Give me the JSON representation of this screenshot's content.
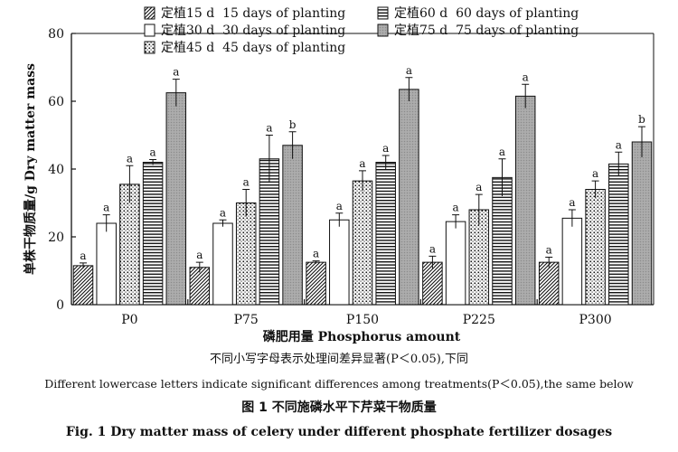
{
  "chart_data": {
    "type": "bar",
    "title": "",
    "xlabel": "磷肥用量 Phosphorus amount",
    "ylabel": "单株干物质量/g Dry matter mass",
    "ylim": [
      0,
      80
    ],
    "yticks": [
      0,
      20,
      40,
      60,
      80
    ],
    "categories": [
      "P0",
      "P75",
      "P150",
      "P225",
      "P300"
    ],
    "legend_position": "top-left",
    "series": [
      {
        "name": "定植15 d  15 days of planting",
        "pattern": "diagonal",
        "values": [
          11.5,
          11.0,
          12.5,
          12.5,
          12.5
        ],
        "errors": [
          0.8,
          1.5,
          0.4,
          1.8,
          1.5
        ],
        "letters": [
          "a",
          "a",
          "a",
          "a",
          "a"
        ]
      },
      {
        "name": "定植30 d  30 days of planting",
        "pattern": "white",
        "values": [
          24.0,
          24.0,
          25.0,
          24.5,
          25.5
        ],
        "errors": [
          2.5,
          1.0,
          2.0,
          2.0,
          2.5
        ],
        "letters": [
          "a",
          "a",
          "a",
          "a",
          "a"
        ]
      },
      {
        "name": "定植45 d  45 days of planting",
        "pattern": "dots",
        "values": [
          35.5,
          30.0,
          36.5,
          28.0,
          34.0
        ],
        "errors": [
          5.5,
          4.0,
          3.0,
          4.5,
          2.5
        ],
        "letters": [
          "a",
          "a",
          "a",
          "a",
          "a"
        ]
      },
      {
        "name": "定植60 d  60 days of planting",
        "pattern": "horizontal",
        "values": [
          42.0,
          43.0,
          42.0,
          37.5,
          41.5
        ],
        "errors": [
          0.8,
          7.0,
          2.0,
          5.5,
          3.5
        ],
        "letters": [
          "a",
          "a",
          "a",
          "a",
          "a"
        ]
      },
      {
        "name": "定植75 d  75 days of planting",
        "pattern": "gray",
        "values": [
          62.5,
          47.0,
          63.5,
          61.5,
          48.0
        ],
        "errors": [
          4.0,
          4.0,
          3.5,
          3.5,
          4.5
        ],
        "letters": [
          "a",
          "b",
          "a",
          "a",
          "b"
        ]
      }
    ]
  },
  "captions": {
    "note_cn": "不同小写字母表示处理间差异显著(P＜0.05),下同",
    "note_en": "Different lowercase letters indicate significant differences among treatments(P＜0.05),the same below",
    "fig_cn": "图 1    不同施磷水平下芹菜干物质量",
    "fig_en": "Fig. 1    Dry matter mass of celery under different phosphate fertilizer dosages"
  }
}
